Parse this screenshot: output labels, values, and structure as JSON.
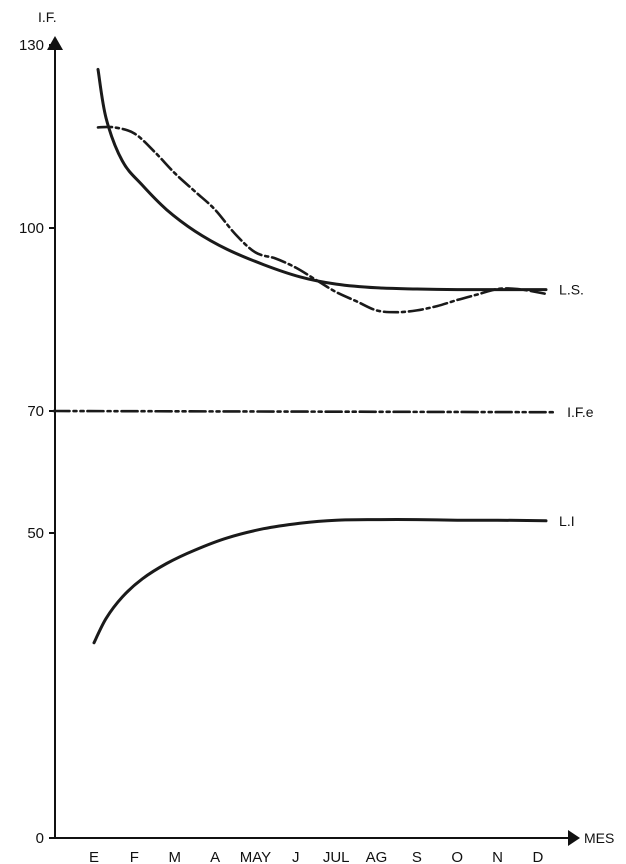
{
  "chart_data": {
    "type": "line",
    "title": "",
    "ylabel": "I.F.",
    "xlabel": "MES",
    "categories": [
      "E",
      "F",
      "M",
      "A",
      "MAY",
      "J",
      "JUL",
      "AG",
      "S",
      "O",
      "N",
      "D"
    ],
    "yticks": [
      0,
      50,
      70,
      100,
      130
    ],
    "ylim": [
      0,
      130
    ],
    "grid": false,
    "legend": "none",
    "series": [
      {
        "name": "L.S.",
        "style": "solid",
        "x": [
          0.1,
          0.3,
          0.7,
          1.2,
          1.8,
          2.5,
          3.3,
          4.2,
          5.1,
          6.0,
          7.0,
          8.0,
          9.0,
          10.0,
          11.2
        ],
        "values": [
          126,
          118,
          111,
          107,
          103,
          99.5,
          96.5,
          94,
          92,
          90.8,
          90.2,
          90.0,
          89.9,
          89.9,
          89.9
        ]
      },
      {
        "name": "",
        "style": "dash-dot",
        "x": [
          0.1,
          0.5,
          1.0,
          1.5,
          2.0,
          2.5,
          3.0,
          3.5,
          4.0,
          4.5,
          5.0,
          5.5,
          6.0,
          6.5,
          7.0,
          7.5,
          8.0,
          8.5,
          9.0,
          9.5,
          10.0,
          10.5,
          11.2
        ],
        "values": [
          116.5,
          116.5,
          115.5,
          112.5,
          109,
          106,
          103,
          99,
          96,
          95,
          93.5,
          91.5,
          89.5,
          88,
          86.5,
          86.2,
          86.5,
          87.2,
          88.2,
          89.1,
          90.0,
          90.0,
          89.2
        ]
      },
      {
        "name": "I.F.e",
        "style": "dash-dot-dot",
        "x": [
          -1.0,
          11.4
        ],
        "values": [
          70,
          69.8
        ]
      },
      {
        "name": "L.I",
        "style": "solid",
        "x": [
          0.0,
          0.3,
          0.7,
          1.2,
          1.8,
          2.5,
          3.3,
          4.2,
          5.1,
          6.0,
          7.0,
          8.0,
          9.0,
          10.0,
          11.2
        ],
        "values": [
          32,
          36,
          39.5,
          42.5,
          45,
          47.2,
          49.2,
          50.7,
          51.6,
          52.1,
          52.2,
          52.2,
          52.1,
          52.1,
          52.0
        ]
      }
    ]
  }
}
